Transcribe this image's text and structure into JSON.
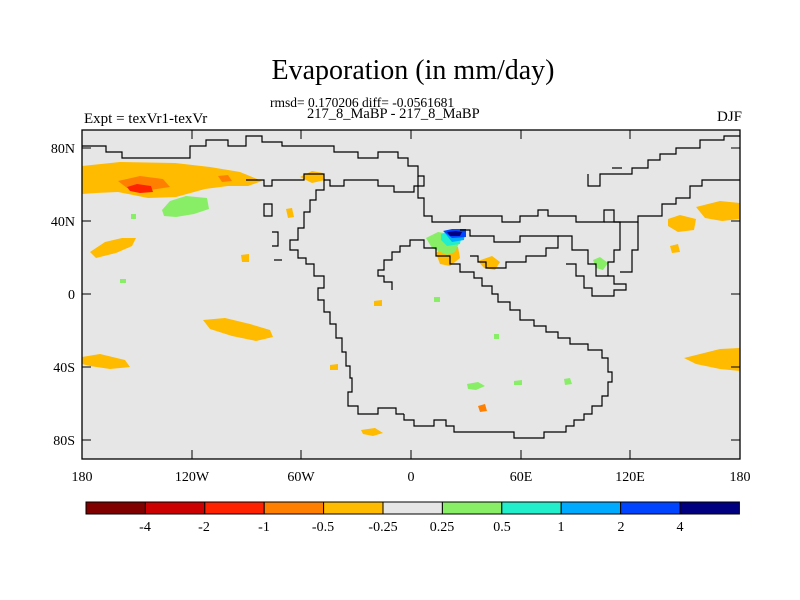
{
  "map": {
    "title": "Evaporation (in mm/day)",
    "stats_line": "rmsd= 0.170206 diff= -0.0561681",
    "subtitle": "217_8_MaBP - 217_8_MaBP",
    "expt_label": "Expt = texVr1-texVr",
    "season": "DJF",
    "lat_ticks": [
      "80N",
      "40N",
      "0",
      "40S",
      "80S"
    ],
    "lon_ticks": [
      "180",
      "120W",
      "60W",
      "0",
      "60E",
      "120E",
      "180"
    ],
    "extent": {
      "lon": [
        -180,
        180
      ],
      "lat": [
        -90,
        90
      ]
    },
    "background_color": "#e6e6e6",
    "coastline_color": "#000000"
  },
  "colorbar": {
    "labels": [
      "-4",
      "-2",
      "-1",
      "-0.5",
      "-0.25",
      "0.25",
      "0.5",
      "1",
      "2",
      "4"
    ],
    "colors": [
      "#800000",
      "#cc0000",
      "#ff2200",
      "#ff8000",
      "#ffbb00",
      "#e6e6e6",
      "#88ee66",
      "#22eecc",
      "#00aaff",
      "#0044ff",
      "#000080"
    ]
  }
}
